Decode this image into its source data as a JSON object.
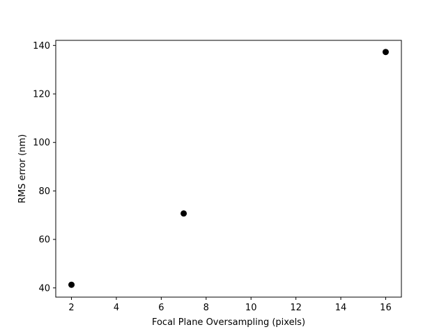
{
  "chart_data": {
    "type": "scatter",
    "title": "",
    "xlabel": "Focal Plane Oversampling (pixels)",
    "ylabel": "RMS error (nm)",
    "xlim": [
      1.3,
      16.7
    ],
    "ylim": [
      36.2,
      142.1
    ],
    "xticks": [
      2,
      4,
      6,
      8,
      10,
      12,
      14,
      16
    ],
    "yticks": [
      40,
      60,
      80,
      100,
      120,
      140
    ],
    "grid": false,
    "legend": "none",
    "marker_color": "#000000",
    "series": [
      {
        "x": [
          2,
          7,
          16
        ],
        "y": [
          41.3,
          70.7,
          137.3
        ]
      }
    ]
  }
}
